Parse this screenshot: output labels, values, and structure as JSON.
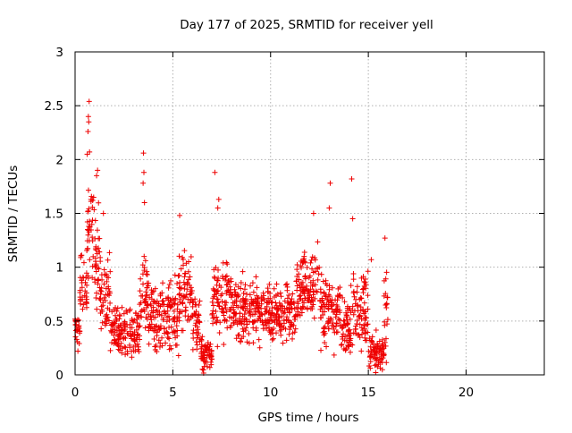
{
  "chart_data": {
    "type": "scatter",
    "title": "Day 177 of 2025, SRMTID for receiver yell",
    "xlabel": "GPS time / hours",
    "ylabel": "SRMTID / TECUs",
    "xlim": [
      0,
      24
    ],
    "ylim": [
      0,
      3
    ],
    "xticks": [
      0,
      5,
      10,
      15,
      20
    ],
    "xtick_labels": [
      "0",
      "5",
      "10",
      "15",
      "20"
    ],
    "yticks": [
      0,
      0.5,
      1,
      1.5,
      2,
      2.5,
      3
    ],
    "ytick_labels": [
      "0",
      "0.5",
      "1",
      "1.5",
      "2",
      "2.5",
      "3"
    ],
    "grid": true,
    "marker": "plus",
    "color": "#ee0000",
    "series": [
      {
        "name": "SRMTID",
        "segments": [
          {
            "x0": 0.0,
            "x1": 0.25,
            "base": 0.4,
            "spread": 0.2
          },
          {
            "x0": 0.25,
            "x1": 0.6,
            "base": 0.8,
            "spread": 0.45
          },
          {
            "x0": 0.6,
            "x1": 0.85,
            "base": 1.2,
            "spread": 0.55
          },
          {
            "x0": 0.85,
            "x1": 1.3,
            "base": 1.05,
            "spread": 0.55
          },
          {
            "x0": 1.3,
            "x1": 1.8,
            "base": 0.7,
            "spread": 0.4
          },
          {
            "x0": 1.8,
            "x1": 3.3,
            "base": 0.4,
            "spread": 0.25
          },
          {
            "x0": 3.3,
            "x1": 3.7,
            "base": 0.75,
            "spread": 0.4
          },
          {
            "x0": 3.7,
            "x1": 5.3,
            "base": 0.55,
            "spread": 0.35
          },
          {
            "x0": 5.3,
            "x1": 6.0,
            "base": 0.8,
            "spread": 0.45
          },
          {
            "x0": 6.0,
            "x1": 6.4,
            "base": 0.45,
            "spread": 0.35
          },
          {
            "x0": 6.4,
            "x1": 7.0,
            "base": 0.2,
            "spread": 0.2
          },
          {
            "x0": 7.0,
            "x1": 8.0,
            "base": 0.7,
            "spread": 0.4
          },
          {
            "x0": 8.0,
            "x1": 10.0,
            "base": 0.6,
            "spread": 0.3
          },
          {
            "x0": 10.0,
            "x1": 11.3,
            "base": 0.55,
            "spread": 0.3
          },
          {
            "x0": 11.3,
            "x1": 12.5,
            "base": 0.85,
            "spread": 0.35
          },
          {
            "x0": 12.5,
            "x1": 13.6,
            "base": 0.6,
            "spread": 0.35
          },
          {
            "x0": 13.6,
            "x1": 14.2,
            "base": 0.4,
            "spread": 0.35
          },
          {
            "x0": 14.2,
            "x1": 15.0,
            "base": 0.6,
            "spread": 0.4
          },
          {
            "x0": 15.0,
            "x1": 15.8,
            "base": 0.2,
            "spread": 0.2
          },
          {
            "x0": 15.8,
            "x1": 16.0,
            "base": 0.5,
            "spread": 0.45
          }
        ],
        "notable_points": [
          {
            "x": 0.72,
            "y": 2.54
          },
          {
            "x": 0.68,
            "y": 2.4
          },
          {
            "x": 0.7,
            "y": 2.35
          },
          {
            "x": 0.66,
            "y": 2.26
          },
          {
            "x": 0.62,
            "y": 2.05
          },
          {
            "x": 0.74,
            "y": 2.07
          },
          {
            "x": 1.15,
            "y": 1.9
          },
          {
            "x": 1.1,
            "y": 1.85
          },
          {
            "x": 0.95,
            "y": 1.65
          },
          {
            "x": 0.9,
            "y": 1.62
          },
          {
            "x": 1.45,
            "y": 1.5
          },
          {
            "x": 3.5,
            "y": 2.06
          },
          {
            "x": 3.52,
            "y": 1.88
          },
          {
            "x": 3.48,
            "y": 1.78
          },
          {
            "x": 3.55,
            "y": 1.6
          },
          {
            "x": 5.35,
            "y": 1.48
          },
          {
            "x": 7.15,
            "y": 1.88
          },
          {
            "x": 7.35,
            "y": 1.63
          },
          {
            "x": 7.3,
            "y": 1.55
          },
          {
            "x": 13.05,
            "y": 1.78
          },
          {
            "x": 12.2,
            "y": 1.5
          },
          {
            "x": 13.0,
            "y": 1.55
          },
          {
            "x": 14.15,
            "y": 1.82
          },
          {
            "x": 14.2,
            "y": 1.45
          },
          {
            "x": 15.85,
            "y": 1.27
          },
          {
            "x": 15.15,
            "y": 1.07
          }
        ]
      }
    ]
  }
}
